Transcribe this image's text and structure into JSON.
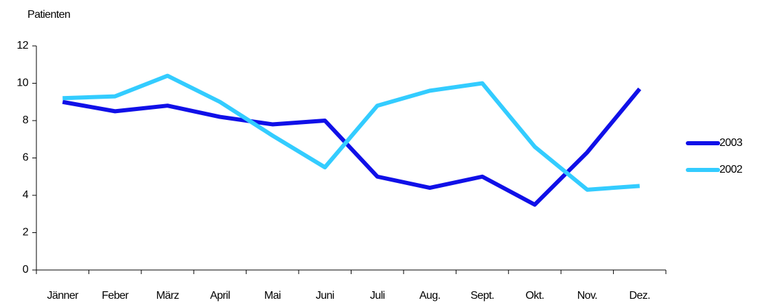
{
  "chart_data": {
    "type": "line",
    "y_label": "Patienten",
    "categories": [
      "Jänner",
      "Feber",
      "März",
      "April",
      "Mai",
      "Juni",
      "Juli",
      "Aug.",
      "Sept.",
      "Okt.",
      "Nov.",
      "Dez."
    ],
    "series": [
      {
        "name": "2003",
        "color": "#1010e8",
        "values": [
          9.0,
          8.5,
          8.8,
          8.2,
          7.8,
          8.0,
          5.0,
          4.4,
          5.0,
          3.5,
          6.3,
          9.7
        ]
      },
      {
        "name": "2002",
        "color": "#33ccff",
        "values": [
          9.2,
          9.3,
          10.4,
          9.0,
          7.2,
          5.5,
          8.8,
          9.6,
          10.0,
          6.6,
          4.3,
          4.5
        ]
      }
    ],
    "ylim": [
      0,
      12
    ],
    "yticks": [
      0,
      2,
      4,
      6,
      8,
      10,
      12
    ],
    "grid": false,
    "legend": "right"
  }
}
